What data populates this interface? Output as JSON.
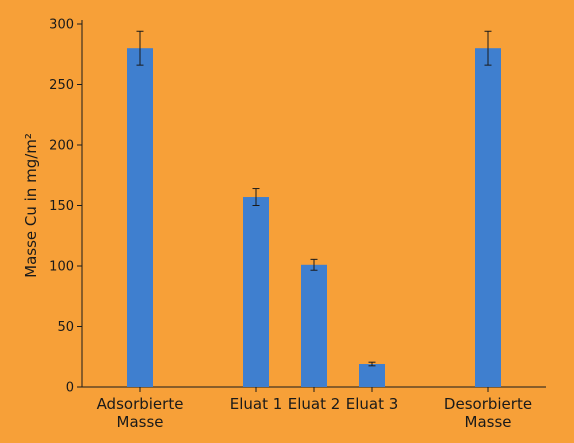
{
  "chart_data": {
    "type": "bar",
    "ylabel": "Masse Cu in mg/m²",
    "xlabel": "",
    "ylim": [
      0,
      300
    ],
    "yticks": [
      0,
      50,
      100,
      150,
      200,
      250,
      300
    ],
    "grid": false,
    "categories": [
      [
        "Adsorbierte",
        "Masse"
      ],
      [
        "Eluat 1"
      ],
      [
        "Eluat 2"
      ],
      [
        "Eluat 3"
      ],
      [
        "Desorbierte",
        "Masse"
      ]
    ],
    "category_positions": [
      1,
      3,
      4,
      5,
      7
    ],
    "xlim": [
      0,
      8
    ],
    "values": [
      280,
      157,
      101,
      19,
      280
    ],
    "errors": [
      14,
      7,
      4.5,
      1.5,
      14
    ],
    "colors": {
      "bar": "#3f7fcf",
      "background": "#f7a038",
      "axis": "#1a1a1a"
    }
  }
}
